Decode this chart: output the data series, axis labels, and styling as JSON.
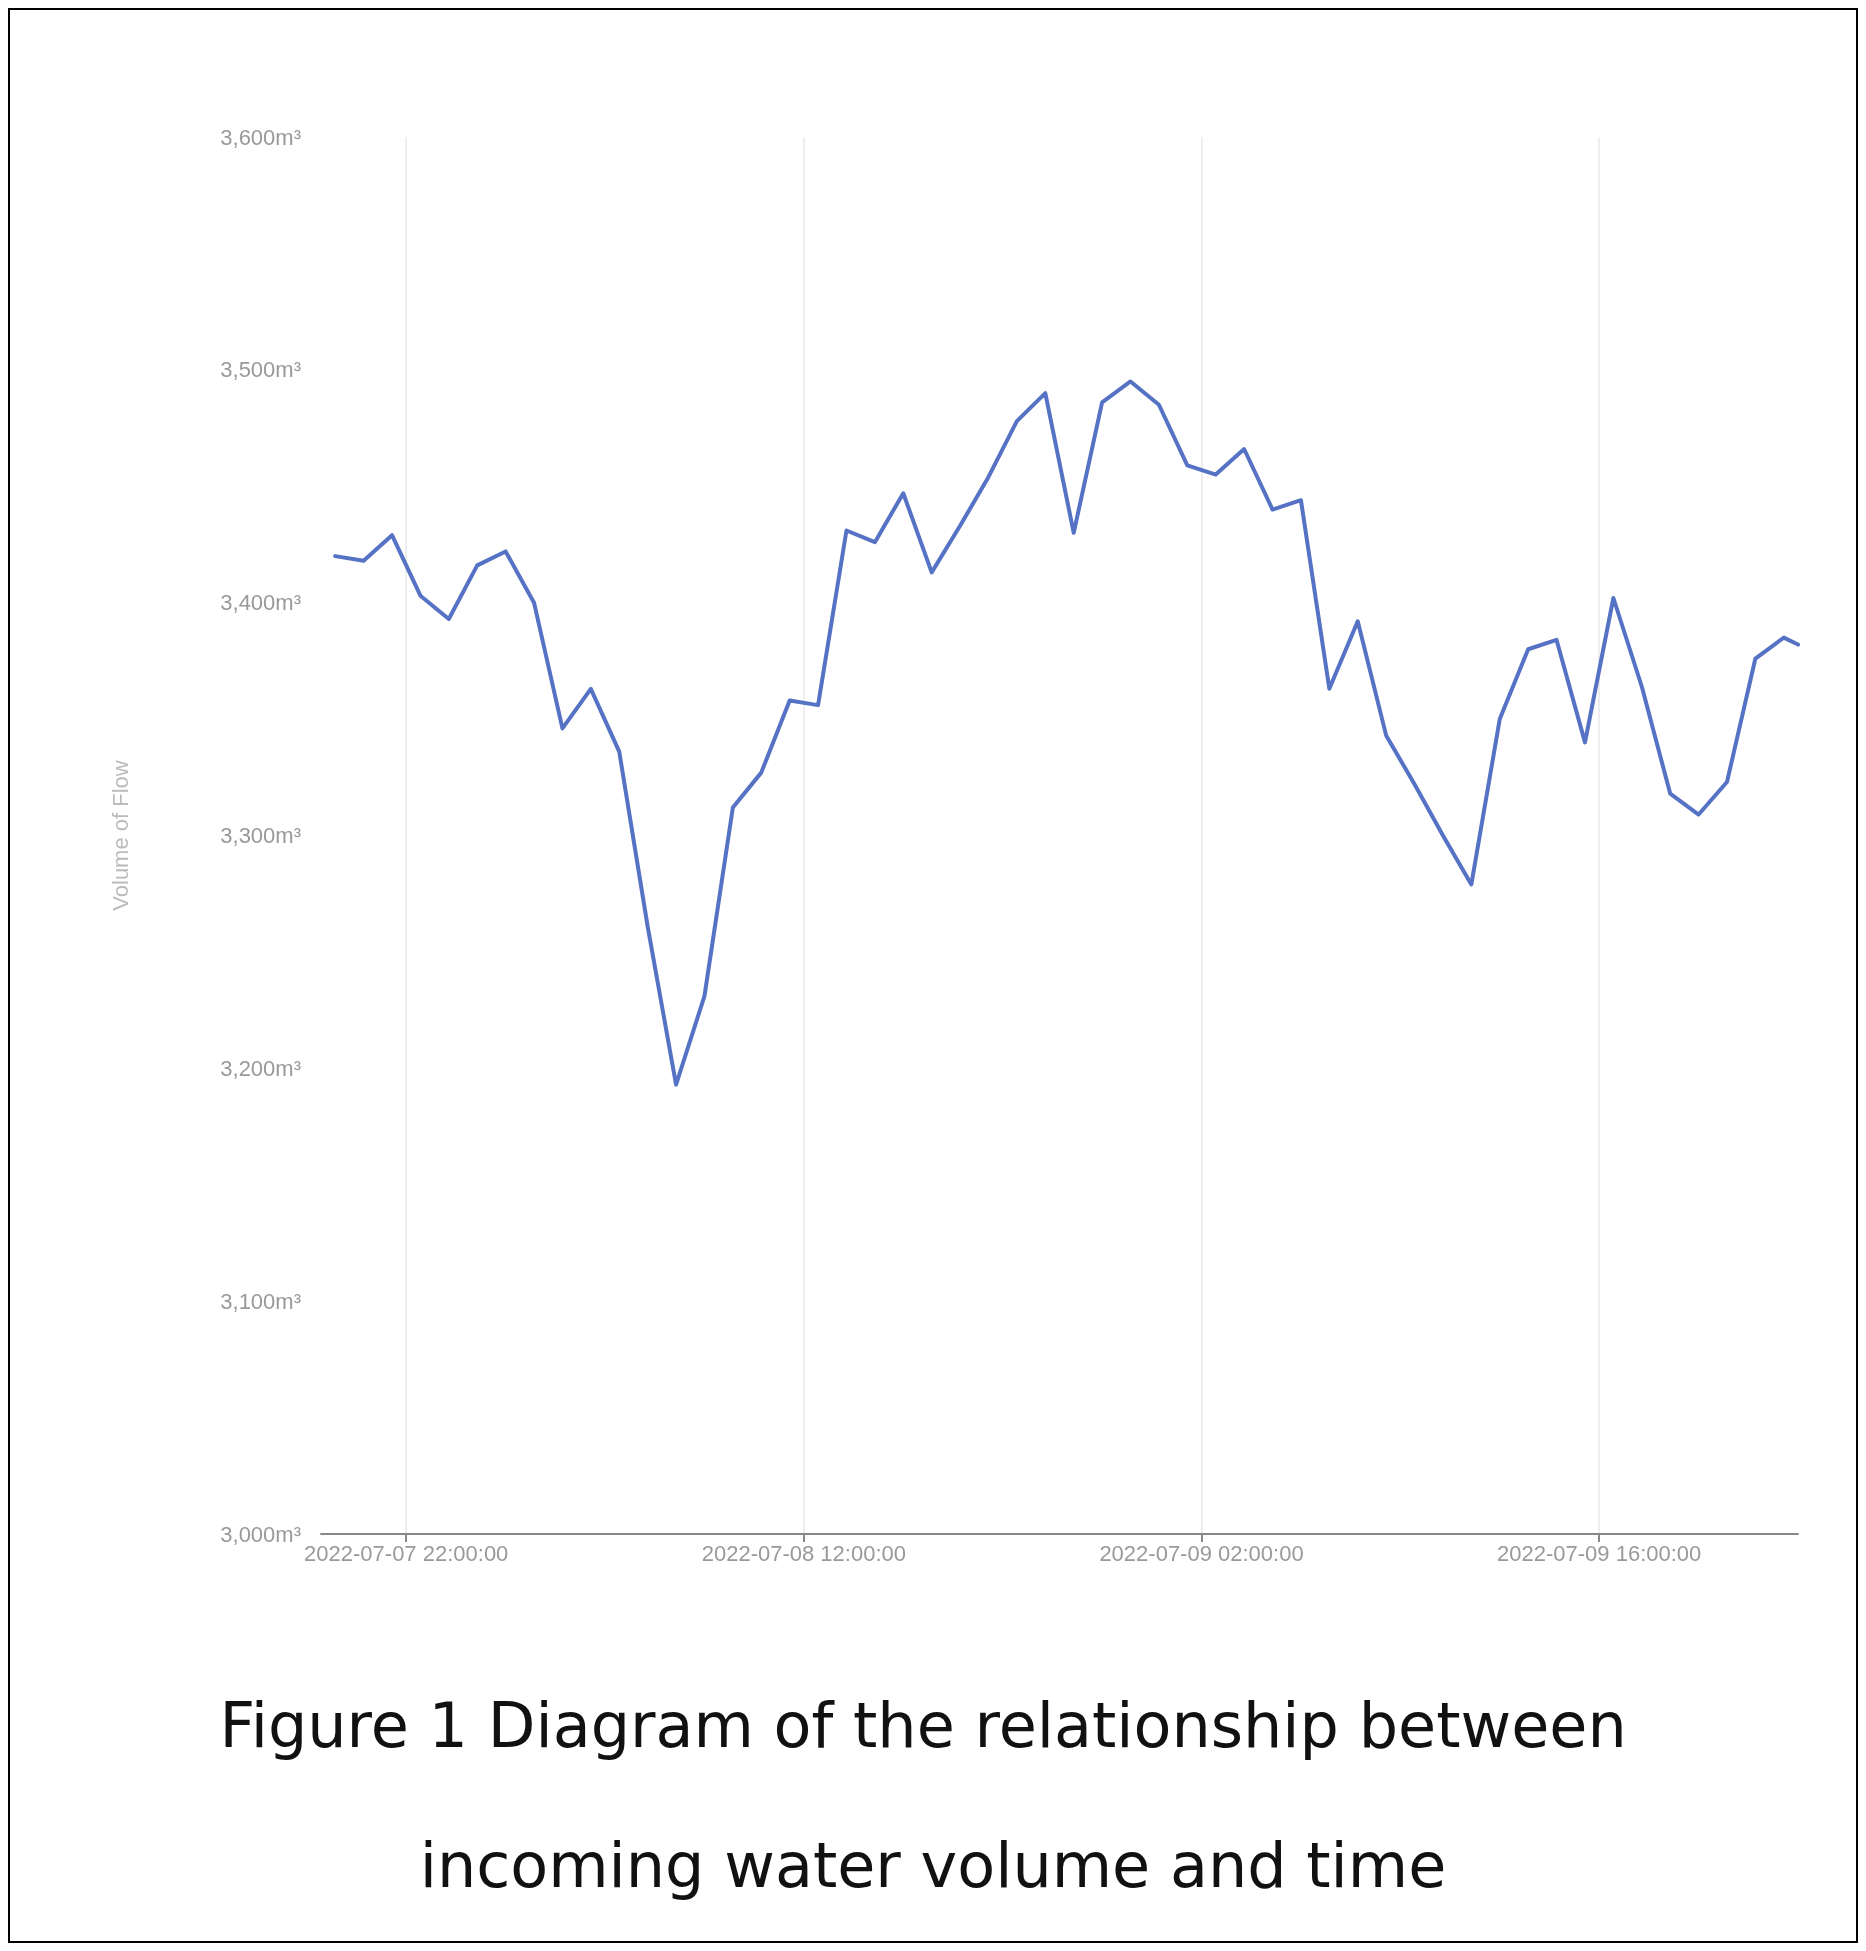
{
  "chart_data": {
    "type": "line",
    "title": "Figure 1 Diagram of the relationship between incoming water volume and time",
    "ylabel": "Volume of Flow",
    "x": [
      "2022-07-07T19:30",
      "2022-07-07T20:30",
      "2022-07-07T21:30",
      "2022-07-07T22:30",
      "2022-07-07T23:30",
      "2022-07-08T00:30",
      "2022-07-08T01:30",
      "2022-07-08T02:30",
      "2022-07-08T03:30",
      "2022-07-08T04:30",
      "2022-07-08T05:30",
      "2022-07-08T06:30",
      "2022-07-08T07:30",
      "2022-07-08T08:30",
      "2022-07-08T09:30",
      "2022-07-08T10:30",
      "2022-07-08T11:30",
      "2022-07-08T12:30",
      "2022-07-08T13:30",
      "2022-07-08T14:30",
      "2022-07-08T15:30",
      "2022-07-08T16:30",
      "2022-07-08T17:30",
      "2022-07-08T18:30",
      "2022-07-08T19:30",
      "2022-07-08T20:30",
      "2022-07-08T21:30",
      "2022-07-08T22:30",
      "2022-07-08T23:30",
      "2022-07-09T00:30",
      "2022-07-09T01:30",
      "2022-07-09T02:30",
      "2022-07-09T03:30",
      "2022-07-09T04:30",
      "2022-07-09T05:30",
      "2022-07-09T06:30",
      "2022-07-09T07:30",
      "2022-07-09T08:30",
      "2022-07-09T09:30",
      "2022-07-09T10:30",
      "2022-07-09T11:30",
      "2022-07-09T12:30",
      "2022-07-09T13:30",
      "2022-07-09T14:30",
      "2022-07-09T15:30",
      "2022-07-09T16:30",
      "2022-07-09T17:30",
      "2022-07-09T18:30",
      "2022-07-09T19:30",
      "2022-07-09T20:30",
      "2022-07-09T21:30",
      "2022-07-09T22:30",
      "2022-07-09T23:00"
    ],
    "series": [
      {
        "color": "#5572c4",
        "values": [
          3420,
          3418,
          3429,
          3403,
          3393,
          3416,
          3422,
          3400,
          3346,
          3363,
          3336,
          3261,
          3193,
          3231,
          3312,
          3327,
          3358,
          3356,
          3431,
          3426,
          3447,
          3413,
          3433,
          3454,
          3478,
          3490,
          3430,
          3486,
          3495,
          3485,
          3459,
          3455,
          3466,
          3440,
          3444,
          3363,
          3392,
          3343,
          3322,
          3300,
          3279,
          3350,
          3380,
          3384,
          3340,
          3402,
          3364,
          3318,
          3309,
          3323,
          3376,
          3385,
          3382
        ]
      }
    ],
    "xlim": [
      "2022-07-07T19:00",
      "2022-07-09T23:00"
    ],
    "xticks": [
      {
        "value": "2022-07-07T22:00",
        "label": "2022-07-07 22:00:00"
      },
      {
        "value": "2022-07-08T12:00",
        "label": "2022-07-08 12:00:00"
      },
      {
        "value": "2022-07-09T02:00",
        "label": "2022-07-09 02:00:00"
      },
      {
        "value": "2022-07-09T16:00",
        "label": "2022-07-09 16:00:00"
      }
    ],
    "ylim": [
      3000,
      3600
    ],
    "yticks": [
      {
        "value": 3000,
        "label": "3,000m³"
      },
      {
        "value": 3100,
        "label": "3,100m³"
      },
      {
        "value": 3200,
        "label": "3,200m³"
      },
      {
        "value": 3300,
        "label": "3,300m³"
      },
      {
        "value": 3400,
        "label": "3,400m³"
      },
      {
        "value": 3500,
        "label": "3,500m³"
      },
      {
        "value": 3600,
        "label": "3,600m³"
      }
    ],
    "grid": "x",
    "marker": "none",
    "line_style": "solid"
  }
}
